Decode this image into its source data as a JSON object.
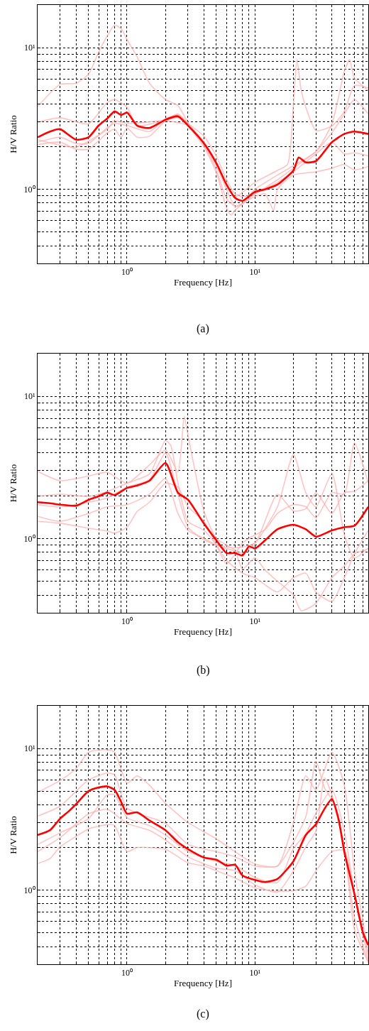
{
  "chart_data": [
    {
      "type": "line",
      "xlabel": "Frequency [Hz]",
      "ylabel": "H/V Ratio",
      "annotations": [
        "(a)"
      ],
      "log": "xy",
      "grid": true,
      "xlim": [
        0.2,
        77
      ],
      "ylim": [
        0.3,
        20
      ],
      "xticks": [
        {
          "value": 0.3,
          "label": null
        },
        {
          "value": 0.4,
          "label": null
        },
        {
          "value": 0.5,
          "label": null
        },
        {
          "value": 0.6,
          "label": null
        },
        {
          "value": 0.7,
          "label": null
        },
        {
          "value": 0.8,
          "label": null
        },
        {
          "value": 0.9,
          "label": null
        },
        {
          "value": 1,
          "label": "10⁰"
        },
        {
          "value": 2,
          "label": null
        },
        {
          "value": 3,
          "label": null
        },
        {
          "value": 4,
          "label": null
        },
        {
          "value": 5,
          "label": null
        },
        {
          "value": 6,
          "label": null
        },
        {
          "value": 7,
          "label": null
        },
        {
          "value": 8,
          "label": null
        },
        {
          "value": 9,
          "label": null
        },
        {
          "value": 10,
          "label": "10¹"
        },
        {
          "value": 20,
          "label": null
        },
        {
          "value": 30,
          "label": null
        },
        {
          "value": 40,
          "label": null
        },
        {
          "value": 50,
          "label": null
        },
        {
          "value": 60,
          "label": null
        },
        {
          "value": 70,
          "label": null
        }
      ],
      "yticks": [
        {
          "value": 0.3,
          "label": null
        },
        {
          "value": 0.4,
          "label": null
        },
        {
          "value": 0.5,
          "label": null
        },
        {
          "value": 0.6,
          "label": null
        },
        {
          "value": 0.7,
          "label": null
        },
        {
          "value": 0.8,
          "label": null
        },
        {
          "value": 0.9,
          "label": null
        },
        {
          "value": 1,
          "label": "10⁰"
        },
        {
          "value": 2,
          "label": null
        },
        {
          "value": 3,
          "label": null
        },
        {
          "value": 4,
          "label": null
        },
        {
          "value": 5,
          "label": null
        },
        {
          "value": 6,
          "label": null
        },
        {
          "value": 7,
          "label": null
        },
        {
          "value": 8,
          "label": null
        },
        {
          "value": 9,
          "label": null
        },
        {
          "value": 10,
          "label": "10¹"
        }
      ],
      "series": [
        {
          "color": "#ff0000",
          "x": [
            0.2,
            0.25,
            0.3,
            0.35,
            0.4,
            0.5,
            0.6,
            0.7,
            0.8,
            0.9,
            1.0,
            1.2,
            1.5,
            2,
            2.5,
            3,
            4,
            5,
            6,
            7,
            8,
            10,
            12,
            15,
            20,
            22,
            25,
            30,
            40,
            50,
            60,
            77
          ],
          "values": [
            2.33,
            2.56,
            2.66,
            2.42,
            2.24,
            2.33,
            2.82,
            3.16,
            3.55,
            3.35,
            3.48,
            2.82,
            2.71,
            3.1,
            3.28,
            2.82,
            2.11,
            1.53,
            1.08,
            0.87,
            0.83,
            0.96,
            1.0,
            1.08,
            1.36,
            1.68,
            1.55,
            1.58,
            2.15,
            2.46,
            2.56,
            2.46
          ]
        },
        {
          "color": "#ffb0b0",
          "x": [
            0.2,
            0.3,
            0.4,
            0.5,
            0.6,
            0.7,
            0.8,
            0.9,
            1.0,
            1.2,
            1.5,
            2,
            2.5,
            3,
            4,
            5,
            6,
            7,
            10,
            15,
            18,
            20,
            21.3,
            23,
            25,
            30,
            40,
            50,
            60,
            77
          ],
          "values": [
            3.83,
            5.5,
            5.6,
            6.5,
            9.3,
            12.1,
            14.4,
            13.6,
            11.4,
            8.6,
            5.6,
            4.3,
            3.9,
            2.95,
            2.15,
            1.53,
            1.08,
            0.89,
            1.12,
            1.36,
            1.5,
            4.0,
            8.2,
            5.0,
            3.8,
            2.6,
            2.8,
            3.55,
            5.4,
            5.2
          ]
        },
        {
          "color": "#ffb0b0",
          "x": [
            0.2,
            0.3,
            0.5,
            0.7,
            0.8,
            1.0,
            1.2,
            2,
            3,
            4,
            5,
            6,
            7,
            8,
            10,
            15,
            20,
            30,
            40,
            50,
            55,
            60,
            77
          ],
          "values": [
            2.98,
            3.2,
            2.9,
            4.1,
            4.3,
            3.8,
            2.82,
            3.04,
            2.82,
            2.07,
            1.47,
            1.0,
            0.76,
            0.8,
            1.0,
            1.26,
            1.47,
            1.85,
            2.9,
            6.8,
            8.2,
            6.1,
            5.0
          ]
        },
        {
          "color": "#ffb0b0",
          "x": [
            0.2,
            0.3,
            0.4,
            0.5,
            0.7,
            0.8,
            0.9,
            1.0,
            1.2,
            1.5,
            2,
            2.5,
            3,
            4,
            5,
            6,
            6.5,
            7,
            8,
            10,
            12,
            14,
            15,
            20,
            30,
            40,
            50,
            60,
            77
          ],
          "values": [
            2.07,
            2.15,
            1.92,
            1.92,
            2.5,
            2.66,
            2.33,
            2.71,
            2.33,
            2.37,
            3.04,
            3.2,
            2.8,
            1.99,
            1.31,
            0.74,
            0.66,
            0.71,
            0.79,
            0.89,
            0.93,
            0.71,
            1.0,
            1.26,
            1.33,
            1.41,
            1.5,
            1.37,
            1.45
          ]
        },
        {
          "color": "#ffb0b0",
          "x": [
            0.2,
            0.3,
            0.4,
            0.5,
            0.7,
            0.8,
            1.0,
            1.5,
            2,
            2.5,
            3,
            4,
            5,
            6,
            7,
            8,
            10,
            15,
            20,
            30,
            40,
            50,
            60,
            77
          ],
          "values": [
            2.15,
            2.33,
            2.11,
            2.11,
            2.71,
            2.92,
            2.82,
            2.56,
            3.16,
            3.35,
            2.92,
            2.37,
            1.71,
            1.17,
            0.93,
            0.89,
            0.93,
            1.17,
            1.41,
            1.85,
            2.51,
            3.4,
            4.3,
            3.4
          ]
        },
        {
          "color": "#ffb0b0",
          "x": [
            0.2,
            0.4,
            0.7,
            0.8,
            1.0,
            2,
            2.5,
            3,
            4,
            5,
            6,
            7,
            8,
            10,
            15,
            20,
            30,
            40,
            50,
            60,
            77
          ],
          "values": [
            2.24,
            1.99,
            2.66,
            3.04,
            2.92,
            3.1,
            3.4,
            2.92,
            2.07,
            1.37,
            0.86,
            0.76,
            0.79,
            0.93,
            1.12,
            1.33,
            1.78,
            2.15,
            1.78,
            1.81,
            1.72
          ]
        }
      ]
    },
    {
      "type": "line",
      "xlabel": "Frequency [Hz]",
      "ylabel": "H/V Ratio",
      "annotations": [
        "(b)"
      ],
      "log": "xy",
      "grid": true,
      "xlim": [
        0.2,
        77
      ],
      "ylim": [
        0.3,
        20
      ],
      "xticks": [
        {
          "value": 0.3,
          "label": null
        },
        {
          "value": 0.4,
          "label": null
        },
        {
          "value": 0.5,
          "label": null
        },
        {
          "value": 0.6,
          "label": null
        },
        {
          "value": 0.7,
          "label": null
        },
        {
          "value": 0.8,
          "label": null
        },
        {
          "value": 0.9,
          "label": null
        },
        {
          "value": 1,
          "label": "10⁰"
        },
        {
          "value": 2,
          "label": null
        },
        {
          "value": 3,
          "label": null
        },
        {
          "value": 4,
          "label": null
        },
        {
          "value": 5,
          "label": null
        },
        {
          "value": 6,
          "label": null
        },
        {
          "value": 7,
          "label": null
        },
        {
          "value": 8,
          "label": null
        },
        {
          "value": 9,
          "label": null
        },
        {
          "value": 10,
          "label": "10¹"
        },
        {
          "value": 20,
          "label": null
        },
        {
          "value": 30,
          "label": null
        },
        {
          "value": 40,
          "label": null
        },
        {
          "value": 50,
          "label": null
        },
        {
          "value": 60,
          "label": null
        },
        {
          "value": 70,
          "label": null
        }
      ],
      "yticks": [
        {
          "value": 0.3,
          "label": null
        },
        {
          "value": 0.4,
          "label": null
        },
        {
          "value": 0.5,
          "label": null
        },
        {
          "value": 0.6,
          "label": null
        },
        {
          "value": 0.7,
          "label": null
        },
        {
          "value": 0.8,
          "label": null
        },
        {
          "value": 0.9,
          "label": null
        },
        {
          "value": 1,
          "label": "10⁰"
        },
        {
          "value": 2,
          "label": null
        },
        {
          "value": 3,
          "label": null
        },
        {
          "value": 4,
          "label": null
        },
        {
          "value": 5,
          "label": null
        },
        {
          "value": 6,
          "label": null
        },
        {
          "value": 7,
          "label": null
        },
        {
          "value": 8,
          "label": null
        },
        {
          "value": 9,
          "label": null
        },
        {
          "value": 10,
          "label": "10¹"
        }
      ],
      "series": [
        {
          "color": "#ff0000",
          "x": [
            0.2,
            0.25,
            0.3,
            0.4,
            0.5,
            0.6,
            0.7,
            0.8,
            0.9,
            1.0,
            1.2,
            1.5,
            2,
            2.5,
            3,
            4,
            5,
            6,
            7,
            8,
            9,
            10,
            12,
            15,
            20,
            25,
            30,
            40,
            50,
            60,
            77
          ],
          "values": [
            1.8,
            1.77,
            1.73,
            1.7,
            1.87,
            1.98,
            2.1,
            2.02,
            2.14,
            2.27,
            2.36,
            2.55,
            3.4,
            2.1,
            1.87,
            1.27,
            0.97,
            0.79,
            0.79,
            0.76,
            0.88,
            0.85,
            0.97,
            1.16,
            1.25,
            1.16,
            1.03,
            1.14,
            1.2,
            1.23,
            1.67
          ]
        },
        {
          "color": "#ffb0b0",
          "x": [
            0.2,
            0.3,
            0.5,
            0.7,
            1.0,
            1.5,
            2,
            2.5,
            2.8,
            3,
            4,
            5,
            6,
            8,
            10,
            15,
            20,
            25,
            30,
            40,
            50,
            60,
            77
          ],
          "values": [
            2.97,
            2.55,
            2.75,
            2.92,
            2.45,
            3.3,
            4.2,
            2.95,
            7.2,
            5.3,
            1.55,
            1.0,
            0.9,
            0.79,
            0.92,
            1.67,
            3.9,
            2.1,
            1.67,
            2.86,
            1.06,
            0.73,
            0.86
          ]
        },
        {
          "color": "#ffb0b0",
          "x": [
            0.2,
            0.3,
            0.5,
            0.7,
            0.8,
            1.0,
            1.2,
            1.5,
            2,
            2.5,
            3,
            4,
            5,
            6,
            7,
            8,
            10,
            12,
            15,
            20,
            25,
            30,
            40,
            50,
            60,
            77
          ],
          "values": [
            1.32,
            1.28,
            1.18,
            1.13,
            1.09,
            1.2,
            1.55,
            1.8,
            2.45,
            2.3,
            1.67,
            1.32,
            0.9,
            0.66,
            0.78,
            0.93,
            1.06,
            1.15,
            1.5,
            1.73,
            1.67,
            1.4,
            2.1,
            2.05,
            4.7,
            2.45
          ]
        },
        {
          "color": "#ffb0b0",
          "x": [
            0.2,
            0.3,
            0.5,
            0.7,
            1.0,
            1.5,
            2,
            2.5,
            3,
            4,
            5,
            6,
            7,
            8,
            10,
            12,
            15,
            20,
            23,
            30,
            40,
            50,
            60,
            77
          ],
          "values": [
            1.43,
            1.32,
            1.5,
            1.67,
            1.73,
            2.05,
            2.65,
            1.5,
            1.14,
            1.0,
            0.9,
            0.85,
            0.81,
            0.61,
            0.73,
            0.6,
            0.5,
            0.4,
            0.31,
            0.35,
            0.53,
            0.64,
            0.78,
            0.84
          ]
        },
        {
          "color": "#ffb0b0",
          "x": [
            0.2,
            0.3,
            0.5,
            0.7,
            1.0,
            1.5,
            2,
            2.2,
            2.5,
            3,
            4,
            5,
            6,
            8,
            10,
            15,
            20,
            25,
            30,
            40,
            50,
            60,
            77
          ],
          "values": [
            1.98,
            2.05,
            1.98,
            2.14,
            2.45,
            2.85,
            4.9,
            4.5,
            2.45,
            1.32,
            1.14,
            0.9,
            0.7,
            0.57,
            0.53,
            0.42,
            0.53,
            0.57,
            0.42,
            0.36,
            0.53,
            0.78,
            1.14
          ]
        },
        {
          "color": "#ffb0b0",
          "x": [
            0.2,
            0.3,
            0.5,
            0.7,
            1.0,
            1.5,
            2,
            2.5,
            3,
            4,
            5,
            7,
            10,
            15,
            20,
            25,
            30,
            40,
            50,
            60,
            77
          ],
          "values": [
            1.73,
            1.67,
            1.8,
            1.93,
            2.3,
            2.6,
            4.0,
            2.05,
            1.2,
            0.98,
            0.9,
            0.86,
            0.93,
            2.05,
            1.56,
            1.62,
            2.1,
            1.5,
            2.1,
            2.15,
            2.55
          ]
        }
      ]
    },
    {
      "type": "line",
      "xlabel": "Frequency [Hz]",
      "ylabel": "H/V Ratio",
      "annotations": [
        "(c)"
      ],
      "log": "xy",
      "grid": true,
      "xlim": [
        0.2,
        77
      ],
      "ylim": [
        0.3,
        20
      ],
      "xticks": [
        {
          "value": 0.3,
          "label": null
        },
        {
          "value": 0.4,
          "label": null
        },
        {
          "value": 0.5,
          "label": null
        },
        {
          "value": 0.6,
          "label": null
        },
        {
          "value": 0.7,
          "label": null
        },
        {
          "value": 0.8,
          "label": null
        },
        {
          "value": 0.9,
          "label": null
        },
        {
          "value": 1,
          "label": "10⁰"
        },
        {
          "value": 2,
          "label": null
        },
        {
          "value": 3,
          "label": null
        },
        {
          "value": 4,
          "label": null
        },
        {
          "value": 5,
          "label": null
        },
        {
          "value": 6,
          "label": null
        },
        {
          "value": 7,
          "label": null
        },
        {
          "value": 8,
          "label": null
        },
        {
          "value": 9,
          "label": null
        },
        {
          "value": 10,
          "label": "10¹"
        },
        {
          "value": 20,
          "label": null
        },
        {
          "value": 30,
          "label": null
        },
        {
          "value": 40,
          "label": null
        },
        {
          "value": 50,
          "label": null
        },
        {
          "value": 60,
          "label": null
        },
        {
          "value": 70,
          "label": null
        }
      ],
      "yticks": [
        {
          "value": 0.3,
          "label": null
        },
        {
          "value": 0.4,
          "label": null
        },
        {
          "value": 0.5,
          "label": null
        },
        {
          "value": 0.6,
          "label": null
        },
        {
          "value": 0.7,
          "label": null
        },
        {
          "value": 0.8,
          "label": null
        },
        {
          "value": 0.9,
          "label": null
        },
        {
          "value": 1,
          "label": "10⁰"
        },
        {
          "value": 2,
          "label": null
        },
        {
          "value": 3,
          "label": null
        },
        {
          "value": 4,
          "label": null
        },
        {
          "value": 5,
          "label": null
        },
        {
          "value": 6,
          "label": null
        },
        {
          "value": 7,
          "label": null
        },
        {
          "value": 8,
          "label": null
        },
        {
          "value": 9,
          "label": null
        },
        {
          "value": 10,
          "label": "10¹"
        }
      ],
      "series": [
        {
          "color": "#ff0000",
          "x": [
            0.2,
            0.25,
            0.3,
            0.35,
            0.4,
            0.5,
            0.6,
            0.7,
            0.8,
            0.9,
            1.0,
            1.2,
            1.5,
            2,
            2.5,
            3,
            4,
            5,
            6,
            7,
            8,
            10,
            12,
            15,
            20,
            25,
            30,
            35,
            40,
            45,
            50,
            60,
            70,
            77
          ],
          "values": [
            2.45,
            2.65,
            3.2,
            3.6,
            4.05,
            5.0,
            5.3,
            5.4,
            5.1,
            4.2,
            3.47,
            3.54,
            3.1,
            2.65,
            2.18,
            1.95,
            1.7,
            1.64,
            1.49,
            1.51,
            1.27,
            1.18,
            1.14,
            1.2,
            1.6,
            2.45,
            2.92,
            3.75,
            4.4,
            3.2,
            1.87,
            0.94,
            0.5,
            0.41
          ]
        },
        {
          "color": "#ffb0b0",
          "x": [
            0.2,
            0.3,
            0.4,
            0.5,
            0.7,
            0.8,
            0.9,
            1.0,
            1.2,
            1.5,
            2,
            3,
            5,
            10,
            15,
            20,
            25,
            30,
            40,
            50,
            60,
            70,
            77
          ],
          "values": [
            4.9,
            5.95,
            7.2,
            9.4,
            9.8,
            9.4,
            7.1,
            5.7,
            6.4,
            5.5,
            4.1,
            3.0,
            2.3,
            1.53,
            1.48,
            3.0,
            6.4,
            5.1,
            9.4,
            5.5,
            1.37,
            0.6,
            0.35
          ]
        },
        {
          "color": "#ffb0b0",
          "x": [
            0.2,
            0.3,
            0.5,
            0.7,
            0.8,
            1.0,
            2,
            3,
            5,
            7,
            10,
            15,
            20,
            25,
            30,
            35,
            40,
            50,
            60,
            77
          ],
          "values": [
            3.33,
            3.92,
            6.0,
            6.7,
            6.5,
            3.8,
            2.96,
            2.1,
            1.87,
            1.72,
            1.48,
            1.48,
            2.18,
            3.3,
            8.1,
            5.27,
            4.35,
            2.02,
            0.53,
            0.31
          ]
        },
        {
          "color": "#ffb0b0",
          "x": [
            0.2,
            0.25,
            0.3,
            0.4,
            0.5,
            0.7,
            0.8,
            1.0,
            1.2,
            2,
            3,
            4,
            5,
            7,
            10,
            15,
            20,
            25,
            30,
            40,
            50,
            60,
            77
          ],
          "values": [
            1.54,
            1.67,
            2.02,
            2.4,
            2.7,
            2.9,
            2.85,
            1.87,
            2.0,
            1.94,
            1.56,
            1.48,
            1.37,
            1.22,
            1.04,
            0.98,
            0.99,
            1.07,
            1.37,
            1.87,
            1.9,
            0.94,
            0.32
          ]
        },
        {
          "color": "#ffb0b0",
          "x": [
            0.2,
            0.3,
            0.5,
            0.7,
            0.8,
            1.0,
            1.5,
            2,
            3,
            5,
            7,
            10,
            15,
            20,
            25,
            30,
            35,
            40,
            50,
            60,
            77
          ],
          "values": [
            1.87,
            2.35,
            3.45,
            3.73,
            3.45,
            2.96,
            2.64,
            2.26,
            1.72,
            1.43,
            1.37,
            1.09,
            0.97,
            1.37,
            2.02,
            2.6,
            6.2,
            4.7,
            2.02,
            0.64,
            0.31
          ]
        },
        {
          "color": "#ffb0b0",
          "x": [
            0.2,
            0.3,
            0.5,
            0.7,
            0.8,
            1.0,
            1.5,
            2,
            3,
            5,
            7,
            10,
            15,
            20,
            25,
            30,
            40,
            50,
            60,
            77
          ],
          "values": [
            2.1,
            2.54,
            3.2,
            4.7,
            4.7,
            3.25,
            2.85,
            2.45,
            1.87,
            1.6,
            1.49,
            1.23,
            1.13,
            1.97,
            2.5,
            3.5,
            5.1,
            2.6,
            0.97,
            0.36
          ]
        }
      ]
    }
  ]
}
